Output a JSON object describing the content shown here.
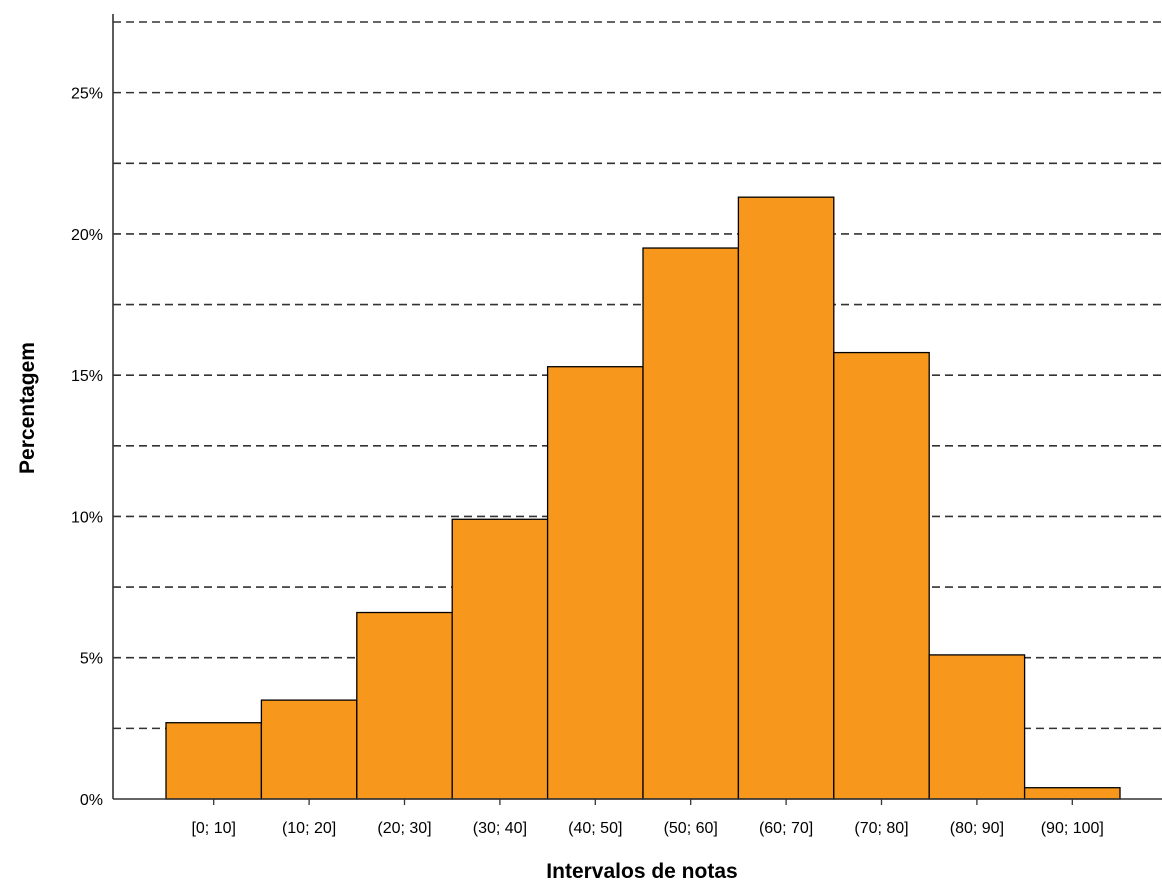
{
  "chart_data": {
    "type": "bar",
    "xlabel": "Intervalos de notas",
    "ylabel": "Percentagem",
    "categories": [
      "[0; 10]",
      "(10; 20]",
      "(20; 30]",
      "(30; 40]",
      "(40; 50]",
      "(50; 60]",
      "(60; 70]",
      "(70; 80]",
      "(80; 90]",
      "(90; 100]"
    ],
    "values": [
      2.7,
      3.5,
      6.6,
      9.9,
      15.3,
      19.5,
      21.3,
      15.8,
      5.1,
      0.4
    ],
    "ylim": [
      0,
      27.5
    ],
    "yticks": [
      0,
      5,
      10,
      15,
      20,
      25
    ],
    "ytick_labels": [
      "0%",
      "5%",
      "10%",
      "15%",
      "20%",
      "25%"
    ],
    "gridlines": [
      2.5,
      5,
      7.5,
      10,
      12.5,
      15,
      17.5,
      20,
      22.5,
      25,
      27.5
    ],
    "grid": true,
    "grid_style": "dashed",
    "bar_color": "#f7981d",
    "bar_edge_color": "#000000",
    "axis_color": "#333333"
  }
}
